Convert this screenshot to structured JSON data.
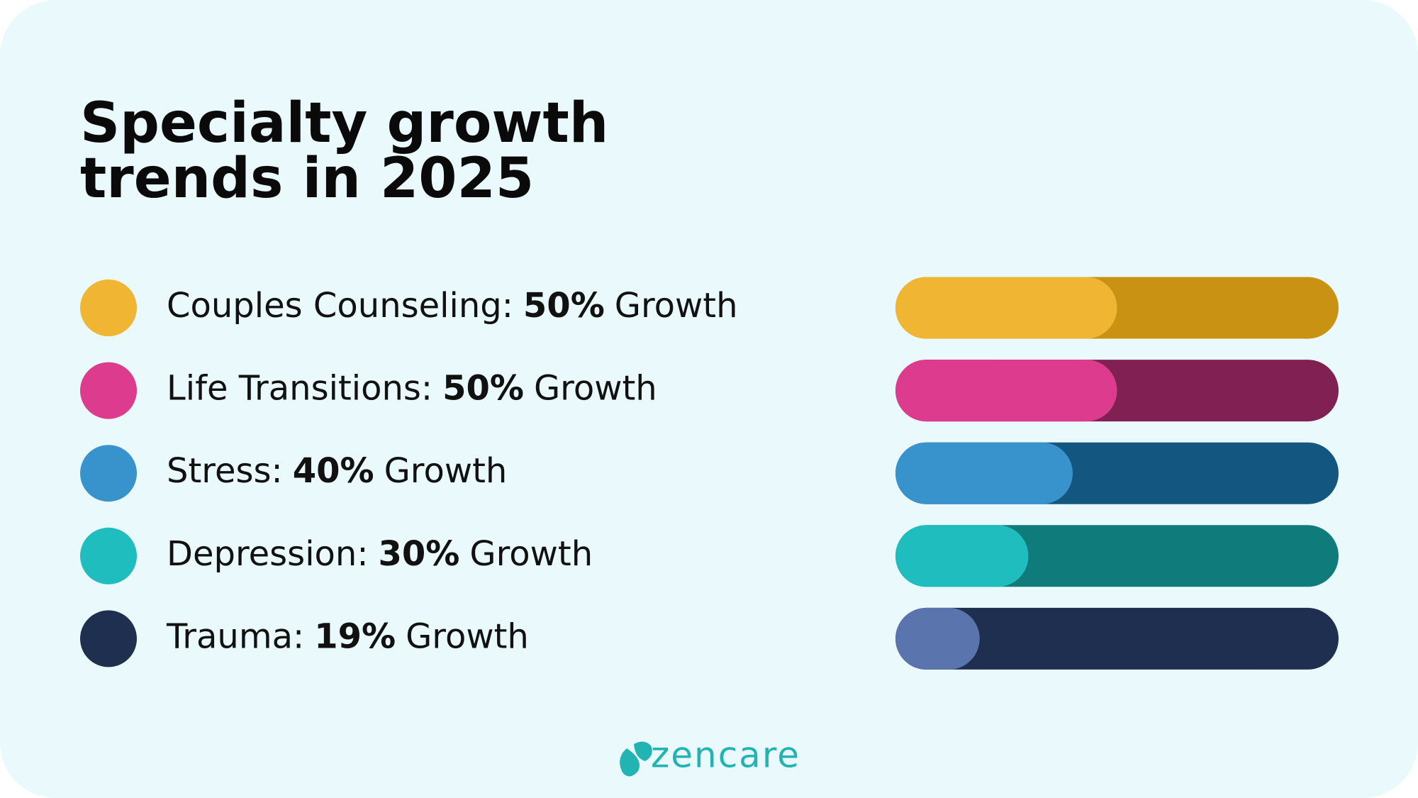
{
  "chart_data": {
    "type": "progress",
    "title": [
      "Specialty growth",
      "trends in 2025"
    ],
    "categories": [
      "Couples Counseling:",
      "Life Transitions:",
      "Stress:",
      "Depression:",
      "Trauma:"
    ],
    "values": [
      50,
      50,
      40,
      30,
      19
    ],
    "value_labels": [
      "50%",
      "50%",
      "40%",
      "30%",
      "19%"
    ],
    "value_suffix": "Growth",
    "xlim": [
      0,
      100
    ],
    "colors": [
      "#f0b532",
      "#dd3c8e",
      "#3893cc",
      "#1fbdbd",
      "#5a74ad"
    ],
    "track_colors": [
      "#c99212",
      "#812052",
      "#135680",
      "#0f7b7b",
      "#1f2f50"
    ],
    "marker_colors": [
      "#f0b532",
      "#dd3c8e",
      "#3893cc",
      "#1fbdbd",
      "#1f2f50"
    ],
    "brand": "zencare"
  }
}
